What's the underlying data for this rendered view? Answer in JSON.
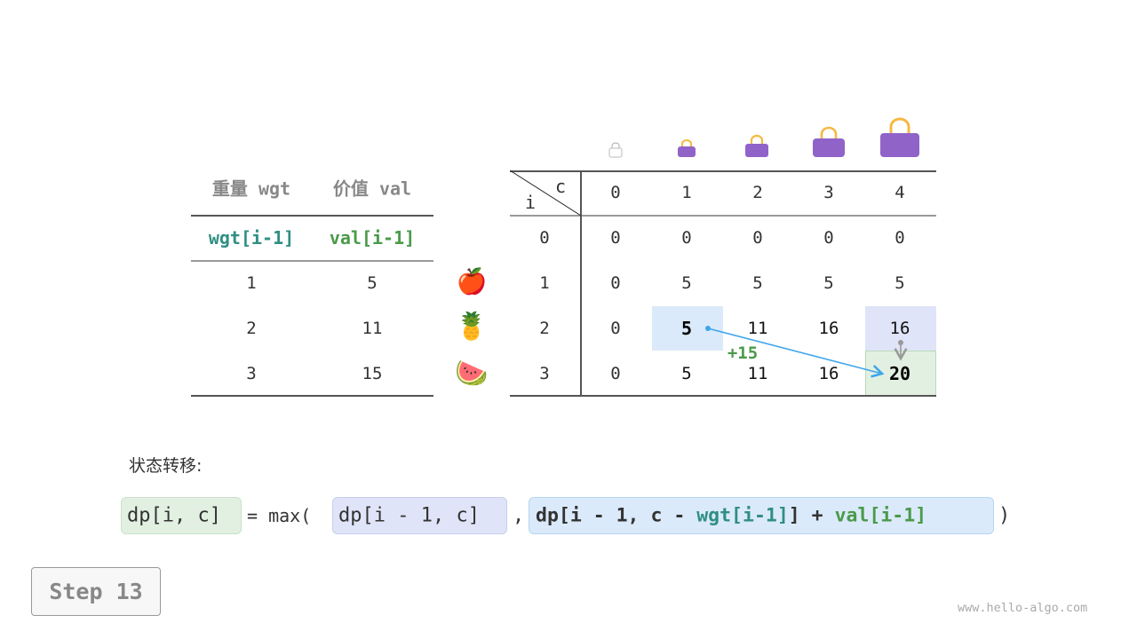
{
  "left_table": {
    "headers": [
      "重量 wgt",
      "价值 val"
    ],
    "subheaders": [
      "wgt[i-1]",
      "val[i-1]"
    ],
    "rows": [
      [
        "1",
        "5"
      ],
      [
        "2",
        "11"
      ],
      [
        "3",
        "15"
      ]
    ]
  },
  "items": [
    {
      "icon": "apple-icon",
      "glyph": "🍎"
    },
    {
      "icon": "pineapple-icon",
      "glyph": "🍍"
    },
    {
      "icon": "watermelon-icon",
      "glyph": "🍉"
    }
  ],
  "dp_table": {
    "corner_row": "i",
    "corner_col": "c",
    "col_headers": [
      "0",
      "1",
      "2",
      "3",
      "4"
    ],
    "row_headers": [
      "0",
      "1",
      "2",
      "3"
    ],
    "rows": [
      [
        "0",
        "0",
        "0",
        "0",
        "0"
      ],
      [
        "0",
        "5",
        "5",
        "5",
        "5"
      ],
      [
        "0",
        "5",
        "11",
        "16",
        "16"
      ],
      [
        "0",
        "5",
        "11",
        "16",
        "20"
      ]
    ],
    "annotation": "+15",
    "colors": {
      "source_item": "#dbeafa",
      "source_skip": "#e0e4f8",
      "target": "#e2f0e2",
      "arrow": "#3ea6ea"
    }
  },
  "caption": "状态转移:",
  "formula": {
    "lhs": "dp[i, c]",
    "eq": "= max(",
    "term1": "dp[i - 1, c]",
    "comma": ",",
    "term2_a": "dp[i - 1, c - ",
    "term2_wgt": "wgt[i-1]",
    "term2_b": "] + ",
    "term2_val": "val[i-1]",
    "close": ")"
  },
  "step_label": "Step 13",
  "watermark": "www.hello-algo.com"
}
